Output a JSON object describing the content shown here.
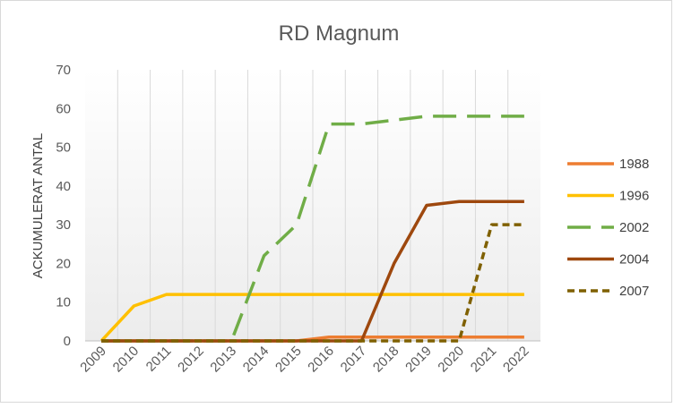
{
  "chart_data": {
    "type": "line",
    "title": "RD Magnum",
    "xlabel": "",
    "ylabel": "ACKUMULERAT ANTAL",
    "ylim": [
      0,
      70
    ],
    "yticks": [
      0,
      10,
      20,
      30,
      40,
      50,
      60,
      70
    ],
    "categories": [
      "2009",
      "2010",
      "2011",
      "2012",
      "2013",
      "2014",
      "2015",
      "2016",
      "2017",
      "2018",
      "2019",
      "2020",
      "2021",
      "2022"
    ],
    "grid": "vertical",
    "legend_position": "right",
    "series": [
      {
        "name": "1988",
        "color": "#ED7D31",
        "dash": "solid",
        "values": [
          0,
          0,
          0,
          0,
          0,
          0,
          0,
          1,
          1,
          1,
          1,
          1,
          1,
          1
        ]
      },
      {
        "name": "1996",
        "color": "#FFC000",
        "dash": "solid",
        "values": [
          0,
          9,
          12,
          12,
          12,
          12,
          12,
          12,
          12,
          12,
          12,
          12,
          12,
          12
        ]
      },
      {
        "name": "2002",
        "color": "#70AD47",
        "dash": "longdash",
        "values": [
          0,
          0,
          0,
          0,
          0,
          22,
          30,
          56,
          56,
          57,
          58,
          58,
          58,
          58
        ]
      },
      {
        "name": "2004",
        "color": "#9E480E",
        "dash": "solid",
        "values": [
          0,
          0,
          0,
          0,
          0,
          0,
          0,
          0,
          0,
          20,
          35,
          36,
          36,
          36
        ]
      },
      {
        "name": "2007",
        "color": "#7F6000",
        "dash": "shortdash",
        "values": [
          0,
          0,
          0,
          0,
          0,
          0,
          0,
          0,
          0,
          0,
          0,
          0,
          30,
          30
        ]
      }
    ]
  }
}
